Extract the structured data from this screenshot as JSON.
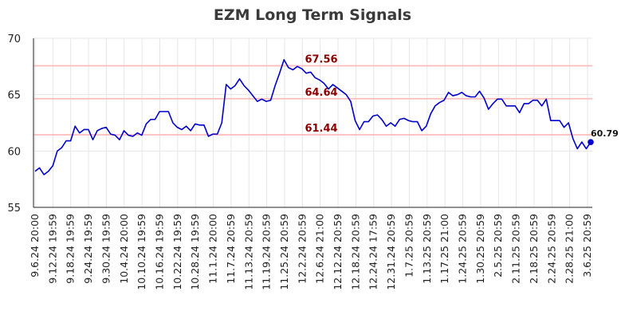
{
  "chart_data": {
    "type": "line",
    "title": "EZM Long Term Signals",
    "xlabel": "",
    "ylabel": "",
    "ylim": [
      55,
      70
    ],
    "yticks": [
      55,
      60,
      65,
      70
    ],
    "grid": true,
    "line_color": "#0000cc",
    "ref_line_color": "#ffbbbb",
    "ref_label_color": "#8b0000",
    "xtick_labels": [
      "9.6.24 20:00",
      "9.12.24 19:59",
      "9.18.24 19:59",
      "9.24.24 19:59",
      "9.30.24 19:59",
      "10.4.24 20:00",
      "10.10.24 19:59",
      "10.16.24 19:59",
      "10.22.24 19:59",
      "10.28.24 19:59",
      "11.1.24 20:00",
      "11.7.24 20:59",
      "11.13.24 20:59",
      "11.19.24 20:59",
      "11.25.24 20:59",
      "12.2.24 20:59",
      "12.6.24 21:00",
      "12.12.24 20:59",
      "12.18.24 20:59",
      "12.24.24 17:59",
      "12.31.24 20:59",
      "1.7.25 20:59",
      "1.13.25 20:59",
      "1.17.25 21:00",
      "1.24.25 20:59",
      "1.30.25 20:59",
      "2.5.25 20:59",
      "2.11.25 20:59",
      "2.18.25 20:59",
      "2.24.25 20:59",
      "2.28.25 21:00",
      "3.6.25 20:59"
    ],
    "reference_lines": [
      {
        "value": 67.56,
        "label": "67.56"
      },
      {
        "value": 64.64,
        "label": "64.64"
      },
      {
        "value": 61.44,
        "label": "61.44"
      }
    ],
    "last_value_label": "60.79",
    "series": [
      {
        "values": [
          58.2,
          58.5,
          57.9,
          58.2,
          58.7,
          60.0,
          60.3,
          60.9,
          60.9,
          62.2,
          61.6,
          61.9,
          61.9,
          61.0,
          61.8,
          62.0,
          62.1,
          61.5,
          61.4,
          61.0,
          61.8,
          61.4,
          61.3,
          61.6,
          61.4,
          62.4,
          62.8,
          62.8,
          63.5,
          63.5,
          63.5,
          62.5,
          62.1,
          61.9,
          62.2,
          61.8,
          62.4,
          62.3,
          62.3,
          61.3,
          61.5,
          61.5,
          62.5,
          65.9,
          65.5,
          65.8,
          66.4,
          65.8,
          65.4,
          64.9,
          64.4,
          64.6,
          64.4,
          64.5,
          65.8,
          66.9,
          68.1,
          67.4,
          67.2,
          67.5,
          67.3,
          66.9,
          67.0,
          66.5,
          66.3,
          66.0,
          65.5,
          65.9,
          65.6,
          65.3,
          65.0,
          64.4,
          62.7,
          61.9,
          62.6,
          62.6,
          63.1,
          63.2,
          62.8,
          62.2,
          62.5,
          62.2,
          62.8,
          62.9,
          62.7,
          62.6,
          62.6,
          61.8,
          62.2,
          63.3,
          64.0,
          64.3,
          64.5,
          65.2,
          64.9,
          65.0,
          65.2,
          64.9,
          64.8,
          64.8,
          65.3,
          64.7,
          63.7,
          64.2,
          64.6,
          64.6,
          64.0,
          64.0,
          64.0,
          63.4,
          64.2,
          64.2,
          64.5,
          64.5,
          64.0,
          64.6,
          62.7,
          62.7,
          62.7,
          62.1,
          62.5,
          61.1,
          60.2,
          60.8,
          60.2,
          60.79
        ]
      }
    ]
  }
}
